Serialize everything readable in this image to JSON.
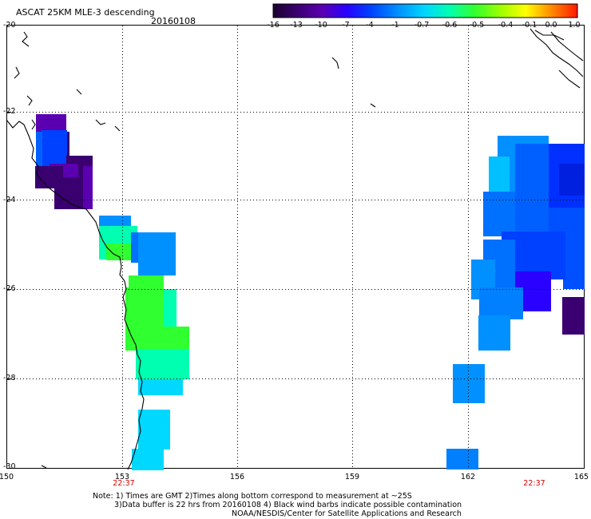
{
  "header": {
    "title": "ASCAT 25KM MLE-3 descending",
    "date": "20160108"
  },
  "colorbar": {
    "labels": [
      "-16",
      "-13",
      "-10",
      "-7",
      "-4",
      "-1",
      "-0.7",
      "-0.6",
      "-0.5",
      "-0.4",
      "-0.1",
      "0.0",
      "1.0"
    ],
    "colors": [
      "#1c0030",
      "#3a0070",
      "#5a00b0",
      "#2a00ff",
      "#0040ff",
      "#0090ff",
      "#00d8ff",
      "#00ffb0",
      "#30ff30",
      "#a0ff00",
      "#ffff00",
      "#ff9000",
      "#ff1800"
    ]
  },
  "axes": {
    "lat_labels": [
      "-20",
      "-22",
      "-24",
      "-26",
      "-28",
      "-30"
    ],
    "lon_labels": [
      "150",
      "153",
      "156",
      "159",
      "162",
      "165"
    ],
    "time_labels": [
      "22:37",
      "22:37"
    ]
  },
  "notes": {
    "line1": "Note: 1) Times are GMT 2)Times along bottom correspond to measurement at ~25S",
    "line2": "3)Data buffer is 22 hrs from 20160108 4) Black wind barbs indicate possible contamination",
    "line3": "NOAA/NESDIS/Center for Satellite Applications and Research"
  }
}
